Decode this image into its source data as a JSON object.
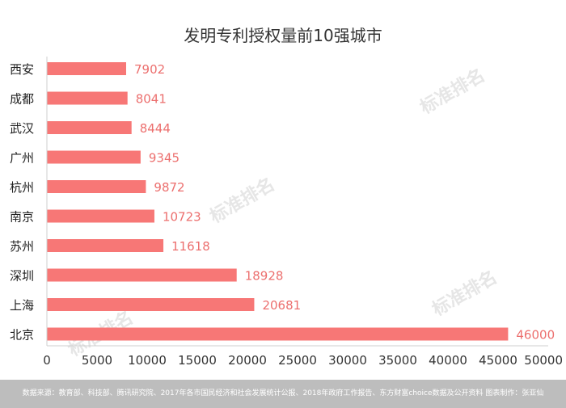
{
  "chart_data": {
    "type": "bar",
    "orientation": "horizontal",
    "title": "发明专利授权量前10强城市",
    "categories": [
      "西安",
      "成都",
      "武汉",
      "广州",
      "杭州",
      "南京",
      "苏州",
      "深圳",
      "上海",
      "北京"
    ],
    "values": [
      7902,
      8041,
      8444,
      9345,
      9872,
      10723,
      11618,
      18928,
      20681,
      46000
    ],
    "xlim": [
      0,
      50000
    ],
    "xticks": [
      0,
      5000,
      10000,
      15000,
      20000,
      25000,
      30000,
      35000,
      40000,
      45000,
      50000
    ],
    "grid": false,
    "bar_color": "#f77776",
    "label_color": "#ec6f6e"
  },
  "watermark": "标准排名",
  "footer": "数据来源：教育部、科技部、腾讯研究院、2017年各市国民经济和社会发展统计公报、2018年政府工作报告、东方财富choice数据及公开资料  图表制作：张亚仙"
}
